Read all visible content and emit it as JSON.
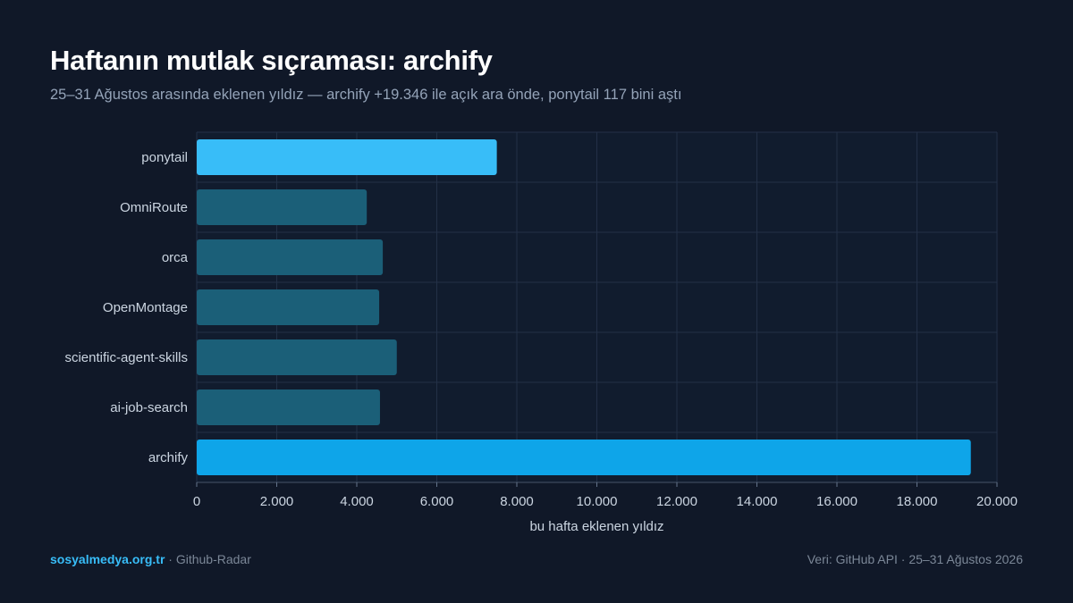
{
  "header": {
    "title": "Haftanın mutlak sıçraması: archify",
    "subtitle": "25–31 Ağustos arasında eklenen yıldız — archify +19.346 ile açık ara önde, ponytail 117 bini aştı"
  },
  "footer": {
    "brand": "sosyalmedya.org.tr",
    "separator": " · ",
    "project": "Github-Radar",
    "source": "Veri: GitHub API · 25–31 Ağustos 2026"
  },
  "colors": {
    "background": "#101828",
    "highlight_bar": "#38bdf8",
    "leader_bar": "#0ea5e9",
    "default_bar": "#1b5f78",
    "grid": "#233047",
    "text": "#cbd5e1"
  },
  "chart_data": {
    "type": "bar",
    "orientation": "horizontal",
    "categories": [
      "ponytail",
      "OmniRoute",
      "orca",
      "OpenMontage",
      "scientific-agent-skills",
      "ai-job-search",
      "archify"
    ],
    "values": [
      7500,
      4250,
      4650,
      4560,
      5000,
      4580,
      19346
    ],
    "highlight": [
      "ponytail",
      "archify"
    ],
    "xlabel": "bu hafta eklenen yıldız",
    "xlim": [
      0,
      20000
    ],
    "xticks": [
      0,
      2000,
      4000,
      6000,
      8000,
      10000,
      12000,
      14000,
      16000,
      18000,
      20000
    ],
    "xtick_labels": [
      "0",
      "2.000",
      "4.000",
      "6.000",
      "8.000",
      "10.000",
      "12.000",
      "14.000",
      "16.000",
      "18.000",
      "20.000"
    ],
    "grid": true
  }
}
